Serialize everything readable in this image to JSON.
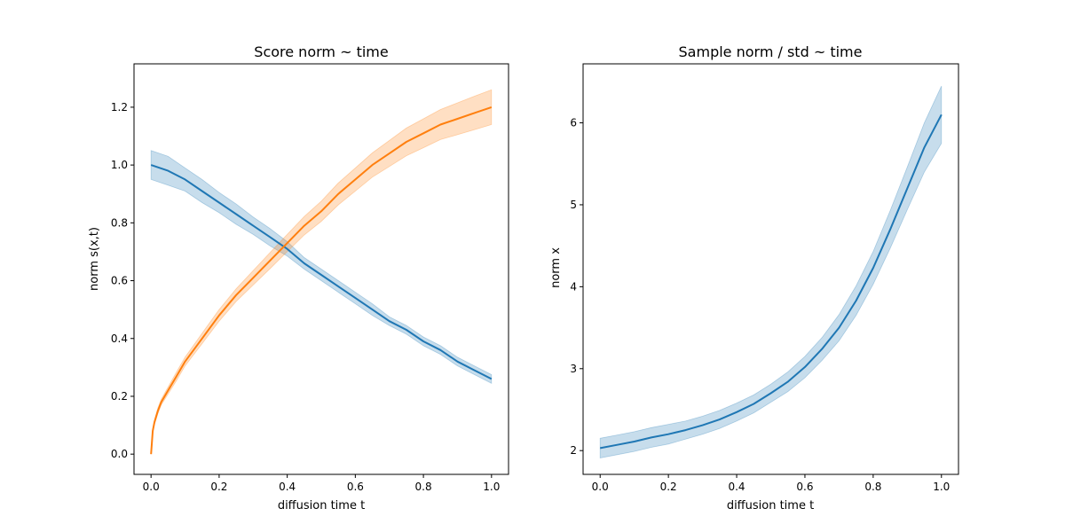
{
  "chart_data": [
    {
      "type": "line",
      "title": "Score norm ~ time",
      "xlabel": "diffusion time t",
      "ylabel": "norm s(x,t)",
      "xlim": [
        -0.05,
        1.05
      ],
      "ylim": [
        -0.07,
        1.35
      ],
      "xticks": [
        0.0,
        0.2,
        0.4,
        0.6,
        0.8,
        1.0
      ],
      "xtick_labels": [
        "0.0",
        "0.2",
        "0.4",
        "0.6",
        "0.8",
        "1.0"
      ],
      "yticks": [
        0.0,
        0.2,
        0.4,
        0.6,
        0.8,
        1.0,
        1.2
      ],
      "ytick_labels": [
        "0.0",
        "0.2",
        "0.4",
        "0.6",
        "0.8",
        "1.0",
        "1.2"
      ],
      "grid": false,
      "series": [
        {
          "color": "#1f77b4",
          "x": [
            0.0,
            0.05,
            0.1,
            0.15,
            0.2,
            0.25,
            0.3,
            0.35,
            0.4,
            0.45,
            0.5,
            0.55,
            0.6,
            0.65,
            0.7,
            0.75,
            0.8,
            0.85,
            0.9,
            0.95,
            1.0
          ],
          "y": [
            1.0,
            0.98,
            0.95,
            0.91,
            0.87,
            0.83,
            0.79,
            0.75,
            0.71,
            0.66,
            0.62,
            0.58,
            0.54,
            0.5,
            0.46,
            0.43,
            0.39,
            0.36,
            0.32,
            0.29,
            0.26
          ],
          "band": [
            0.05,
            0.05,
            0.04,
            0.04,
            0.035,
            0.035,
            0.03,
            0.03,
            0.025,
            0.02,
            0.02,
            0.02,
            0.02,
            0.02,
            0.015,
            0.015,
            0.015,
            0.015,
            0.015,
            0.015,
            0.015
          ]
        },
        {
          "color": "#ff7f0e",
          "x": [
            0.0,
            0.005,
            0.01,
            0.02,
            0.03,
            0.05,
            0.075,
            0.1,
            0.15,
            0.2,
            0.25,
            0.3,
            0.35,
            0.4,
            0.45,
            0.5,
            0.55,
            0.6,
            0.65,
            0.7,
            0.75,
            0.8,
            0.85,
            0.9,
            0.95,
            1.0
          ],
          "y": [
            0.0,
            0.08,
            0.11,
            0.15,
            0.18,
            0.22,
            0.27,
            0.32,
            0.4,
            0.48,
            0.55,
            0.61,
            0.67,
            0.73,
            0.79,
            0.84,
            0.9,
            0.95,
            1.0,
            1.04,
            1.08,
            1.11,
            1.14,
            1.16,
            1.18,
            1.2
          ],
          "band": [
            0.0,
            0.005,
            0.008,
            0.01,
            0.01,
            0.012,
            0.015,
            0.015,
            0.018,
            0.02,
            0.022,
            0.025,
            0.028,
            0.03,
            0.032,
            0.035,
            0.038,
            0.04,
            0.042,
            0.045,
            0.048,
            0.05,
            0.052,
            0.055,
            0.058,
            0.06
          ]
        }
      ]
    },
    {
      "type": "line",
      "title": "Sample norm / std ~ time",
      "xlabel": "diffusion time t",
      "ylabel": "norm x",
      "xlim": [
        -0.05,
        1.05
      ],
      "ylim": [
        1.71,
        6.72
      ],
      "xticks": [
        0.0,
        0.2,
        0.4,
        0.6,
        0.8,
        1.0
      ],
      "xtick_labels": [
        "0.0",
        "0.2",
        "0.4",
        "0.6",
        "0.8",
        "1.0"
      ],
      "yticks": [
        2,
        3,
        4,
        5,
        6
      ],
      "ytick_labels": [
        "2",
        "3",
        "4",
        "5",
        "6"
      ],
      "grid": false,
      "series": [
        {
          "color": "#1f77b4",
          "x": [
            0.0,
            0.05,
            0.1,
            0.15,
            0.2,
            0.25,
            0.3,
            0.35,
            0.4,
            0.45,
            0.5,
            0.55,
            0.6,
            0.65,
            0.7,
            0.75,
            0.8,
            0.85,
            0.9,
            0.95,
            1.0
          ],
          "y": [
            2.03,
            2.07,
            2.11,
            2.16,
            2.2,
            2.25,
            2.31,
            2.38,
            2.47,
            2.57,
            2.7,
            2.84,
            3.02,
            3.24,
            3.5,
            3.83,
            4.23,
            4.7,
            5.2,
            5.7,
            6.1
          ],
          "band": [
            0.12,
            0.12,
            0.12,
            0.12,
            0.12,
            0.11,
            0.11,
            0.11,
            0.11,
            0.11,
            0.11,
            0.12,
            0.13,
            0.14,
            0.16,
            0.18,
            0.2,
            0.23,
            0.26,
            0.3,
            0.35
          ]
        }
      ]
    }
  ]
}
